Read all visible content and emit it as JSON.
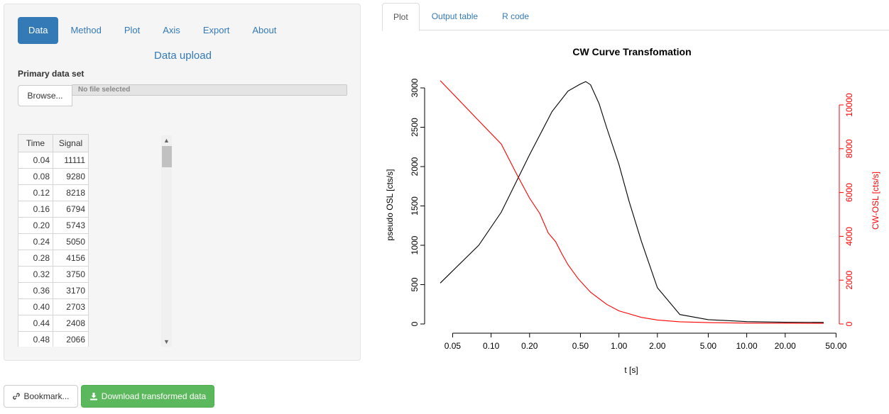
{
  "left_tabs": [
    "Data",
    "Method",
    "Plot",
    "Axis",
    "Export",
    "About"
  ],
  "upload": {
    "heading": "Data upload",
    "label": "Primary data set",
    "browse_label": "Browse...",
    "file_placeholder": "No file selected"
  },
  "table": {
    "columns": [
      "Time",
      "Signal"
    ],
    "rows": [
      [
        "0.04",
        "11111"
      ],
      [
        "0.08",
        "9280"
      ],
      [
        "0.12",
        "8218"
      ],
      [
        "0.16",
        "6794"
      ],
      [
        "0.20",
        "5743"
      ],
      [
        "0.24",
        "5050"
      ],
      [
        "0.28",
        "4156"
      ],
      [
        "0.32",
        "3750"
      ],
      [
        "0.36",
        "3170"
      ],
      [
        "0.40",
        "2703"
      ],
      [
        "0.44",
        "2408"
      ],
      [
        "0.48",
        "2066"
      ]
    ]
  },
  "buttons": {
    "bookmark": "Bookmark...",
    "download": "Download transformed data"
  },
  "right_tabs": [
    "Plot",
    "Output table",
    "R code"
  ],
  "icons": [
    "link-icon",
    "download-icon"
  ],
  "colors": {
    "primary": "#337ab7",
    "success": "#5cb85c",
    "pseudo_curve": "#000000",
    "cw_curve": "#ff0000"
  },
  "chart_data": {
    "type": "line",
    "title": "CW Curve Transfomation",
    "xlabel": "t [s]",
    "ylabel": "pseudo OSL [cts/s]",
    "y2label": "CW-OSL [cts/s]",
    "x_scale": "log",
    "xlim": [
      0.04,
      40
    ],
    "ylim": [
      0,
      3000
    ],
    "y2lim": [
      0,
      10000
    ],
    "x_ticks": [
      "0.05",
      "0.10",
      "0.20",
      "0.50",
      "1.00",
      "2.00",
      "5.00",
      "10.00",
      "20.00",
      "50.00"
    ],
    "x_tick_values": [
      0.05,
      0.1,
      0.2,
      0.5,
      1,
      2,
      5,
      10,
      20,
      50
    ],
    "y_ticks": [
      0,
      500,
      1000,
      1500,
      2000,
      2500,
      3000
    ],
    "y2_ticks": [
      0,
      2000,
      4000,
      6000,
      8000,
      10000
    ],
    "series": [
      {
        "name": "",
        "axis": "left",
        "color": "#000000",
        "x": [
          0.04,
          0.08,
          0.12,
          0.2,
          0.3,
          0.4,
          0.5,
          0.55,
          0.6,
          0.7,
          0.8,
          1.0,
          1.2,
          1.5,
          2.0,
          3.0,
          5.0,
          10,
          20,
          40
        ],
        "y": [
          520,
          1000,
          1420,
          2150,
          2700,
          2960,
          3050,
          3080,
          3040,
          2800,
          2500,
          2030,
          1560,
          1050,
          460,
          120,
          55,
          30,
          22,
          20
        ]
      },
      {
        "name": "",
        "axis": "right",
        "color": "#ff0000",
        "x": [
          0.04,
          0.08,
          0.12,
          0.16,
          0.2,
          0.24,
          0.28,
          0.32,
          0.36,
          0.4,
          0.48,
          0.6,
          0.8,
          1.0,
          1.5,
          2.0,
          3.0,
          5.0,
          10,
          40
        ],
        "y": [
          11111,
          9280,
          8218,
          6794,
          5743,
          5050,
          4156,
          3750,
          3170,
          2703,
          2066,
          1450,
          900,
          600,
          300,
          180,
          100,
          60,
          40,
          30
        ]
      }
    ]
  }
}
